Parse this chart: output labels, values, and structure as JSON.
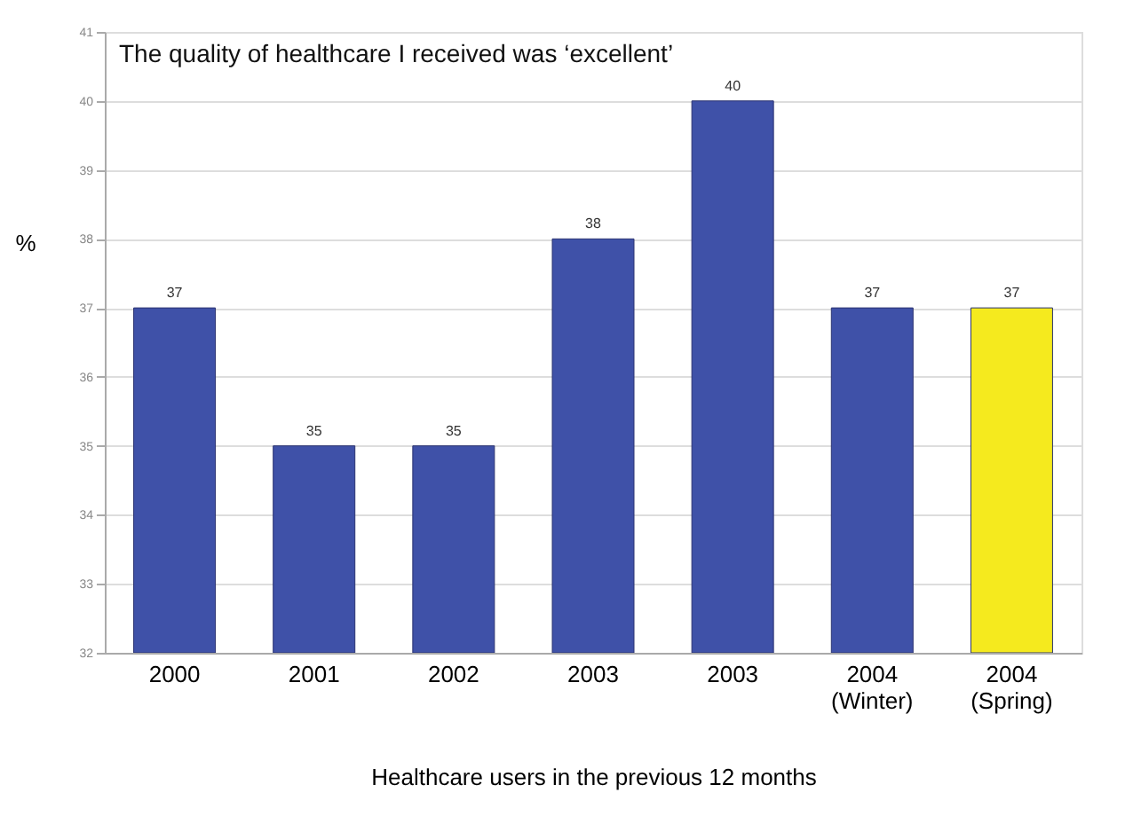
{
  "chart_data": {
    "type": "bar",
    "title": "The quality of healthcare I received was ‘excellent’",
    "xlabel": "Healthcare users in the previous 12 months",
    "ylabel": "%",
    "categories": [
      "2000",
      "2001",
      "2002",
      "2003",
      "2003",
      "2004 (Winter)",
      "2004 (Spring)"
    ],
    "values": [
      37,
      35,
      35,
      38,
      40,
      37,
      37
    ],
    "colors": [
      "#3f51a8",
      "#3f51a8",
      "#3f51a8",
      "#3f51a8",
      "#3f51a8",
      "#3f51a8",
      "#f5ea1e"
    ],
    "ylim": [
      32,
      41
    ],
    "yticks": [
      32,
      33,
      34,
      35,
      36,
      37,
      38,
      39,
      40,
      41
    ],
    "grid": "y",
    "data_labels": true
  }
}
